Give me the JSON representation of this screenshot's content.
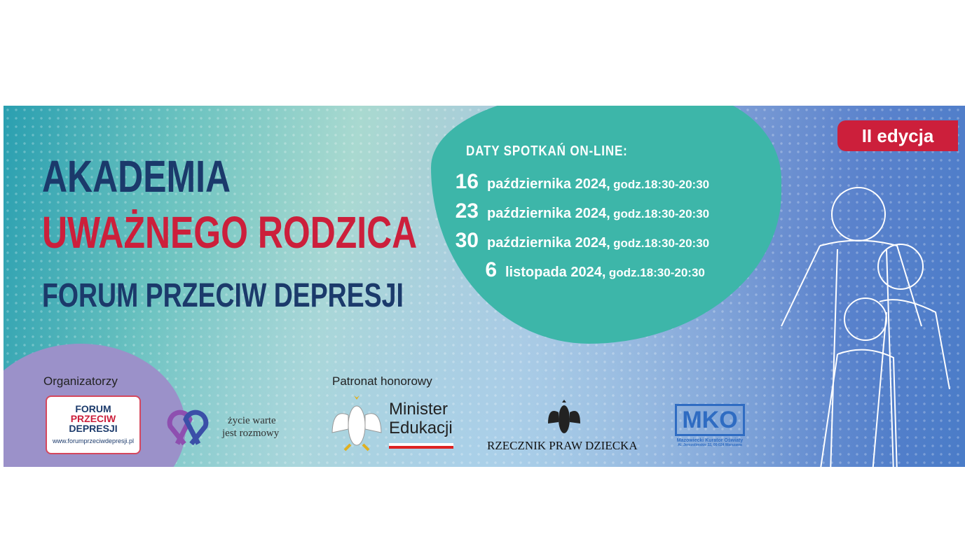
{
  "title": {
    "line1": "AKADEMIA",
    "line2": "UWAŻNEGO RODZICA",
    "line3": "FORUM PRZECIW DEPRESJI"
  },
  "badge": "II edycja",
  "dates": {
    "heading": "DATY SPOTKAŃ ON-LINE:",
    "items": [
      {
        "day": "16",
        "month": "października 2024,",
        "hours": "godz.18:30-20:30"
      },
      {
        "day": "23",
        "month": "października 2024,",
        "hours": "godz.18:30-20:30"
      },
      {
        "day": "30",
        "month": "października 2024,",
        "hours": "godz.18:30-20:30"
      },
      {
        "day": "6",
        "month": "listopada 2024,",
        "hours": "godz.18:30-20:30"
      }
    ]
  },
  "organizers": {
    "label": "Organizatorzy",
    "fpd_logo": {
      "l1": "FORUM",
      "l2": "PRZECIW",
      "l3": "DEPRESJI",
      "url": "www.forumprzeciwdepresji.pl"
    },
    "zycie_logo": {
      "l1": "życie warte",
      "l2": "jest rozmowy"
    }
  },
  "patron": {
    "label": "Patronat honorowy",
    "minister": {
      "l1": "Minister",
      "l2": "Edukacji"
    }
  },
  "rpd": "RZECZNIK PRAW DZIECKA",
  "mko": {
    "abbr": "MKO",
    "name": "Mazowiecki Kurator Oświaty",
    "address": "Al. Jerozolimskie 32, 00-024 Warszawa"
  },
  "colors": {
    "navy": "#1b3a6b",
    "red": "#cc1f3b",
    "teal": "#3db6a9",
    "purple": "#9b91c9"
  }
}
